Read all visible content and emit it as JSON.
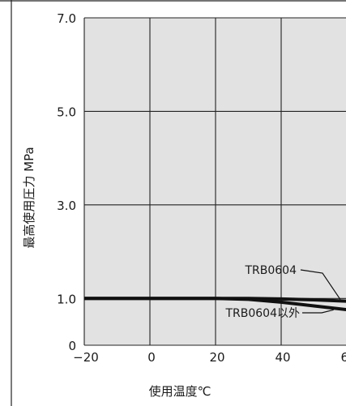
{
  "chart_data": {
    "type": "line",
    "title": "",
    "xlabel": "使用温度℃",
    "ylabel": "最高使用圧力 MPa",
    "xlim": [
      -20,
      60
    ],
    "ylim": [
      0,
      7.0
    ],
    "xticks": [
      -20,
      0,
      20,
      40,
      60
    ],
    "xtick_labels": [
      "−20",
      "0",
      "20",
      "40",
      "60"
    ],
    "yticks": [
      0,
      1.0,
      3.0,
      5.0,
      7.0
    ],
    "ytick_labels": [
      "0",
      "1.0",
      "3.0",
      "5.0",
      "7.0"
    ],
    "grid": true,
    "plot_background": "#e2e2e2",
    "line_color": "#111111",
    "series": [
      {
        "name": "TRB0604",
        "x": [
          -20,
          0,
          20,
          30,
          40,
          50,
          60,
          62
        ],
        "y": [
          1.0,
          1.0,
          1.0,
          1.0,
          0.99,
          0.97,
          0.94,
          0.93
        ]
      },
      {
        "name": "TRB0604以外",
        "x": [
          -20,
          0,
          20,
          30,
          40,
          50,
          60,
          62
        ],
        "y": [
          1.0,
          1.0,
          1.0,
          0.98,
          0.92,
          0.84,
          0.76,
          0.74
        ]
      }
    ],
    "annotations": [
      {
        "text": "TRB0604",
        "series": 0,
        "at_x": 58
      },
      {
        "text": "TRB0604以外",
        "series": 1,
        "at_x": 56
      }
    ]
  }
}
